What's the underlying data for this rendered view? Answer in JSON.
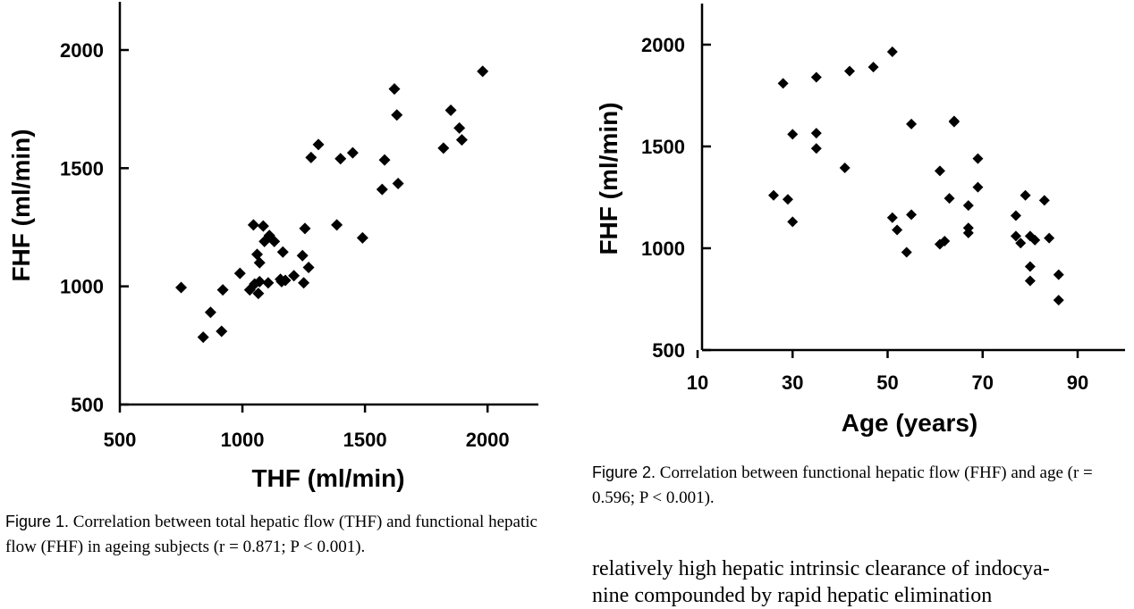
{
  "chart_data": [
    {
      "type": "scatter",
      "title": "",
      "xlabel": "THF (ml/min)",
      "ylabel": "FHF (ml/min)",
      "xlim": [
        500,
        2200
      ],
      "ylim": [
        500,
        2200
      ],
      "xticks": [
        500,
        1000,
        1500,
        2000
      ],
      "yticks": [
        500,
        1000,
        1500,
        2000
      ],
      "grid": false,
      "x": [
        750,
        840,
        870,
        915,
        920,
        990,
        1030,
        1045,
        1050,
        1060,
        1065,
        1070,
        1070,
        1085,
        1090,
        1105,
        1110,
        1130,
        1155,
        1160,
        1165,
        1175,
        1210,
        1245,
        1250,
        1255,
        1270,
        1280,
        1310,
        1385,
        1400,
        1450,
        1490,
        1570,
        1580,
        1620,
        1630,
        1635,
        1820,
        1850,
        1885,
        1895,
        1980
      ],
      "y": [
        995,
        785,
        890,
        810,
        985,
        1055,
        985,
        1260,
        1010,
        1135,
        970,
        1100,
        1020,
        1255,
        1190,
        1015,
        1215,
        1190,
        1030,
        1020,
        1145,
        1025,
        1045,
        1130,
        1015,
        1245,
        1080,
        1545,
        1600,
        1260,
        1540,
        1565,
        1205,
        1410,
        1535,
        1835,
        1725,
        1435,
        1585,
        1745,
        1670,
        1620,
        1910
      ]
    },
    {
      "type": "scatter",
      "title": "",
      "xlabel": "Age (years)",
      "ylabel": "FHF (ml/min)",
      "xlim": [
        10,
        100
      ],
      "ylim": [
        500,
        2200
      ],
      "xticks": [
        10,
        30,
        50,
        70,
        90
      ],
      "yticks": [
        500,
        1000,
        1500,
        2000
      ],
      "grid": false,
      "x": [
        26,
        28,
        29,
        30,
        30,
        35,
        35,
        35,
        41,
        42,
        47,
        51,
        51,
        52,
        54,
        55,
        55,
        61,
        61,
        62,
        63,
        64,
        64,
        67,
        67,
        67,
        69,
        69,
        77,
        77,
        78,
        79,
        80,
        80,
        80,
        81,
        83,
        84,
        86,
        86
      ],
      "y": [
        1260,
        1810,
        1240,
        1130,
        1560,
        1840,
        1565,
        1490,
        1395,
        1870,
        1890,
        1965,
        1150,
        1090,
        980,
        1610,
        1165,
        1380,
        1020,
        1035,
        1245,
        1620,
        1625,
        1075,
        1100,
        1210,
        1440,
        1300,
        1060,
        1160,
        1025,
        1260,
        910,
        1060,
        840,
        1040,
        1235,
        1050,
        870,
        745
      ]
    }
  ],
  "figure1": {
    "x_ticks": [
      "500",
      "1000",
      "1500",
      "2000"
    ],
    "y_ticks": [
      "500",
      "1000",
      "1500",
      "2000"
    ]
  },
  "figure2": {
    "x_ticks": [
      "10",
      "30",
      "50",
      "70",
      "90"
    ],
    "y_ticks": [
      "500",
      "1000",
      "1500",
      "2000"
    ]
  },
  "captions": {
    "figure1_lead": "Figure 1.",
    "figure1_text": "Correlation between total hepatic flow (THF) and functional hepatic flow (FHF) in ageing subjects (r = 0.871; P < 0.001).",
    "figure2_lead": "Figure 2.",
    "figure2_text": "Correlation between functional hepatic flow (FHF) and age (r = 0.596; P < 0.001)."
  },
  "body_text": {
    "line1": "relatively high hepatic intrinsic clearance of indocya-",
    "line2": "nine compounded by rapid hepatic elimination"
  }
}
